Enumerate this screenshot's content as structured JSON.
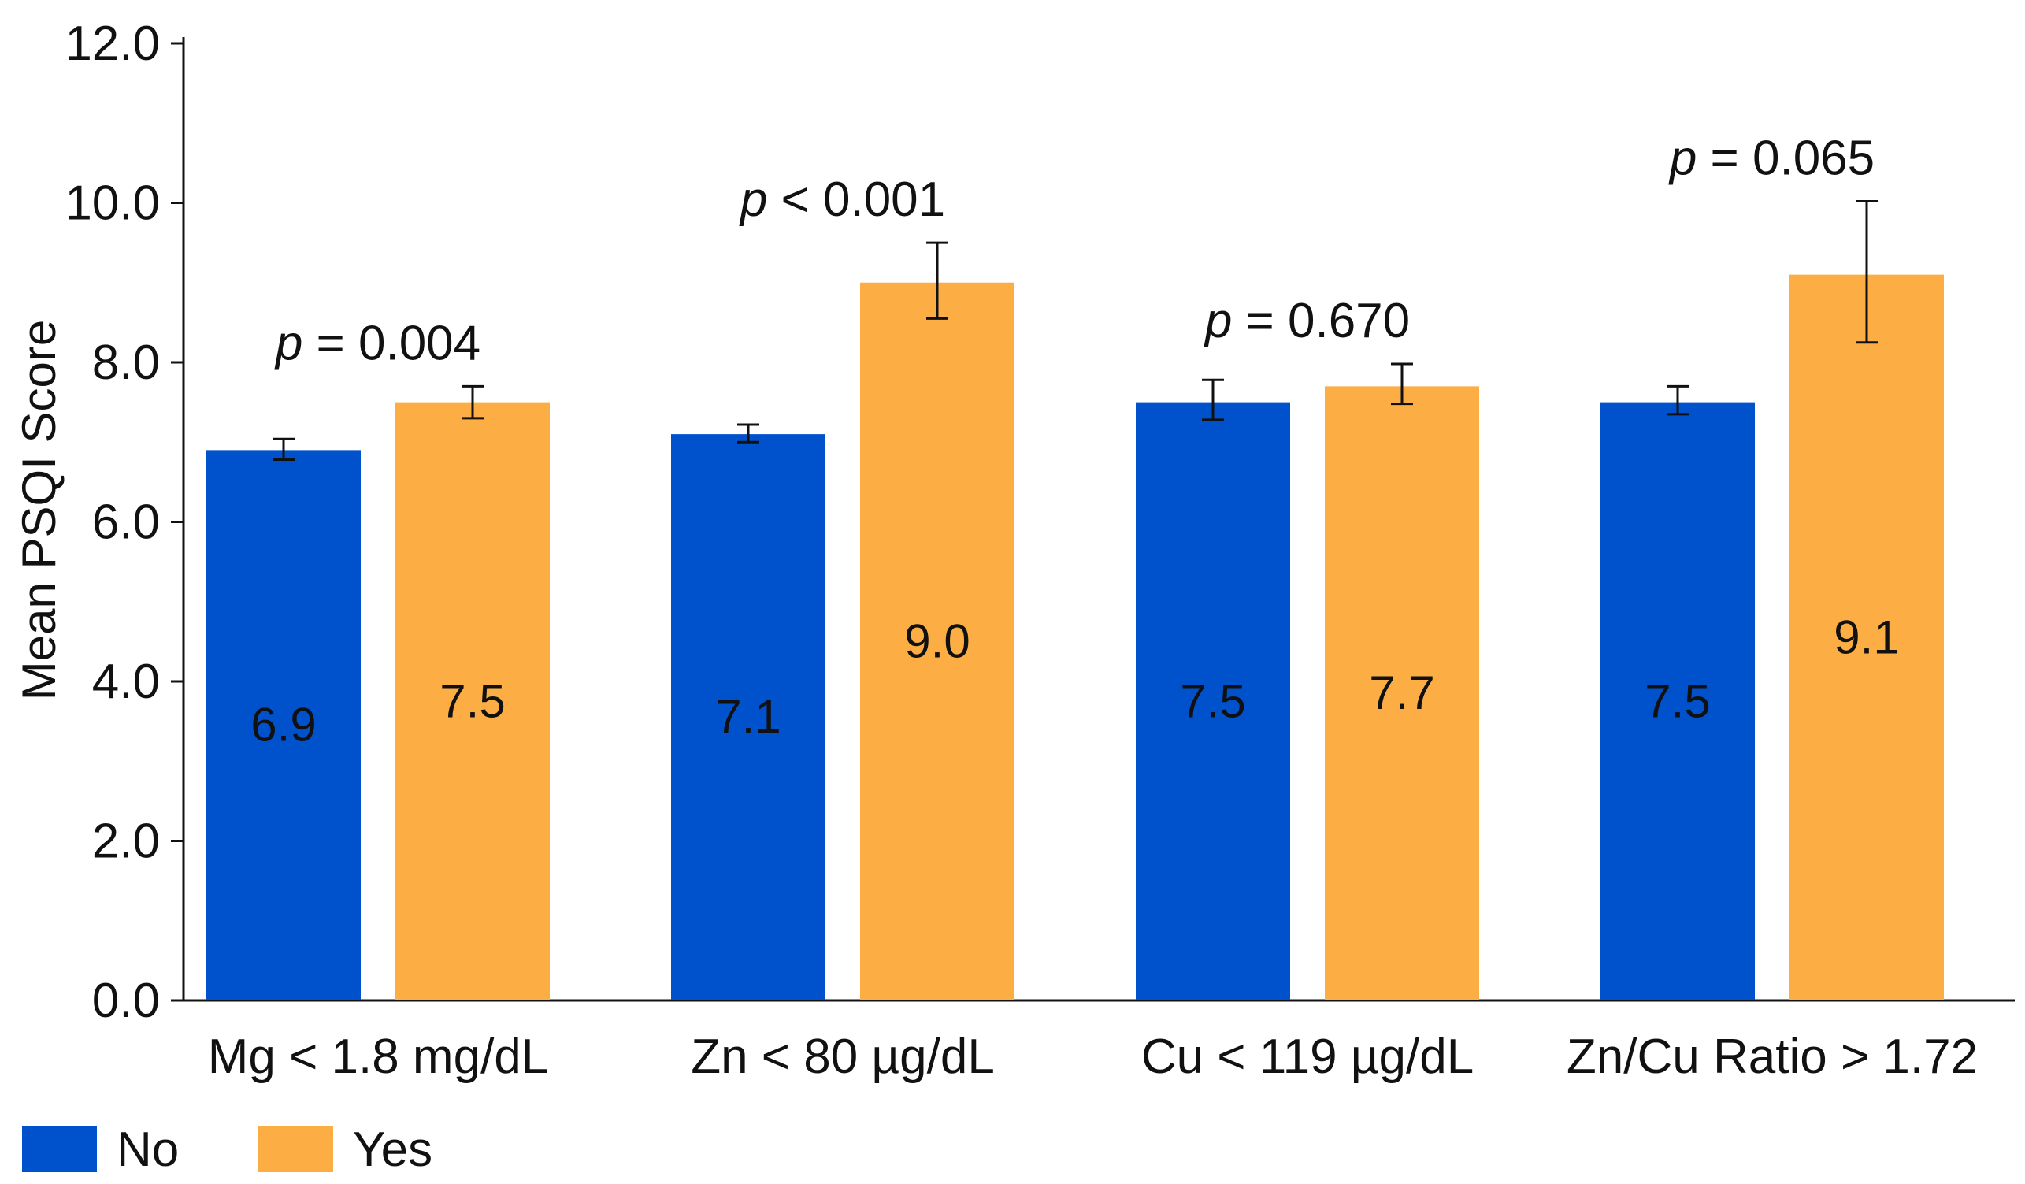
{
  "chart_data": {
    "type": "bar",
    "title": "",
    "xlabel": "",
    "ylabel": "Mean PSQI Score",
    "ylim": [
      0,
      12
    ],
    "yticks": [
      "0.0",
      "2.0",
      "4.0",
      "6.0",
      "8.0",
      "10.0",
      "12.0"
    ],
    "grid": false,
    "legend_position": "bottom-left",
    "categories": [
      "Mg < 1.8 mg/dL",
      "Zn < 80 µg/dL",
      "Cu < 119 µg/dL",
      "Zn/Cu Ratio > 1.72"
    ],
    "series": [
      {
        "name": "No",
        "color": "#0052cc",
        "values": [
          6.9,
          7.1,
          7.5,
          7.5
        ],
        "labels": [
          "6.9",
          "7.1",
          "7.5",
          "7.5"
        ],
        "error_low": [
          6.78,
          7.0,
          7.28,
          7.35
        ],
        "error_high": [
          7.04,
          7.22,
          7.78,
          7.7
        ]
      },
      {
        "name": "Yes",
        "color": "#fcae45",
        "values": [
          7.5,
          9.0,
          7.7,
          9.1
        ],
        "labels": [
          "7.5",
          "9.0",
          "7.7",
          "9.1"
        ],
        "error_low": [
          7.3,
          8.55,
          7.48,
          8.25
        ],
        "error_high": [
          7.7,
          9.5,
          7.98,
          10.02
        ]
      }
    ],
    "annotations": [
      {
        "category": "Mg < 1.8 mg/dL",
        "symbol": "p",
        "text": " = 0.004"
      },
      {
        "category": "Zn < 80 µg/dL",
        "symbol": "p",
        "text": " < 0.001"
      },
      {
        "category": "Cu < 119 µg/dL",
        "symbol": "p",
        "text": " = 0.670"
      },
      {
        "category": "Zn/Cu Ratio > 1.72",
        "symbol": "p",
        "text": " = 0.065"
      }
    ]
  }
}
